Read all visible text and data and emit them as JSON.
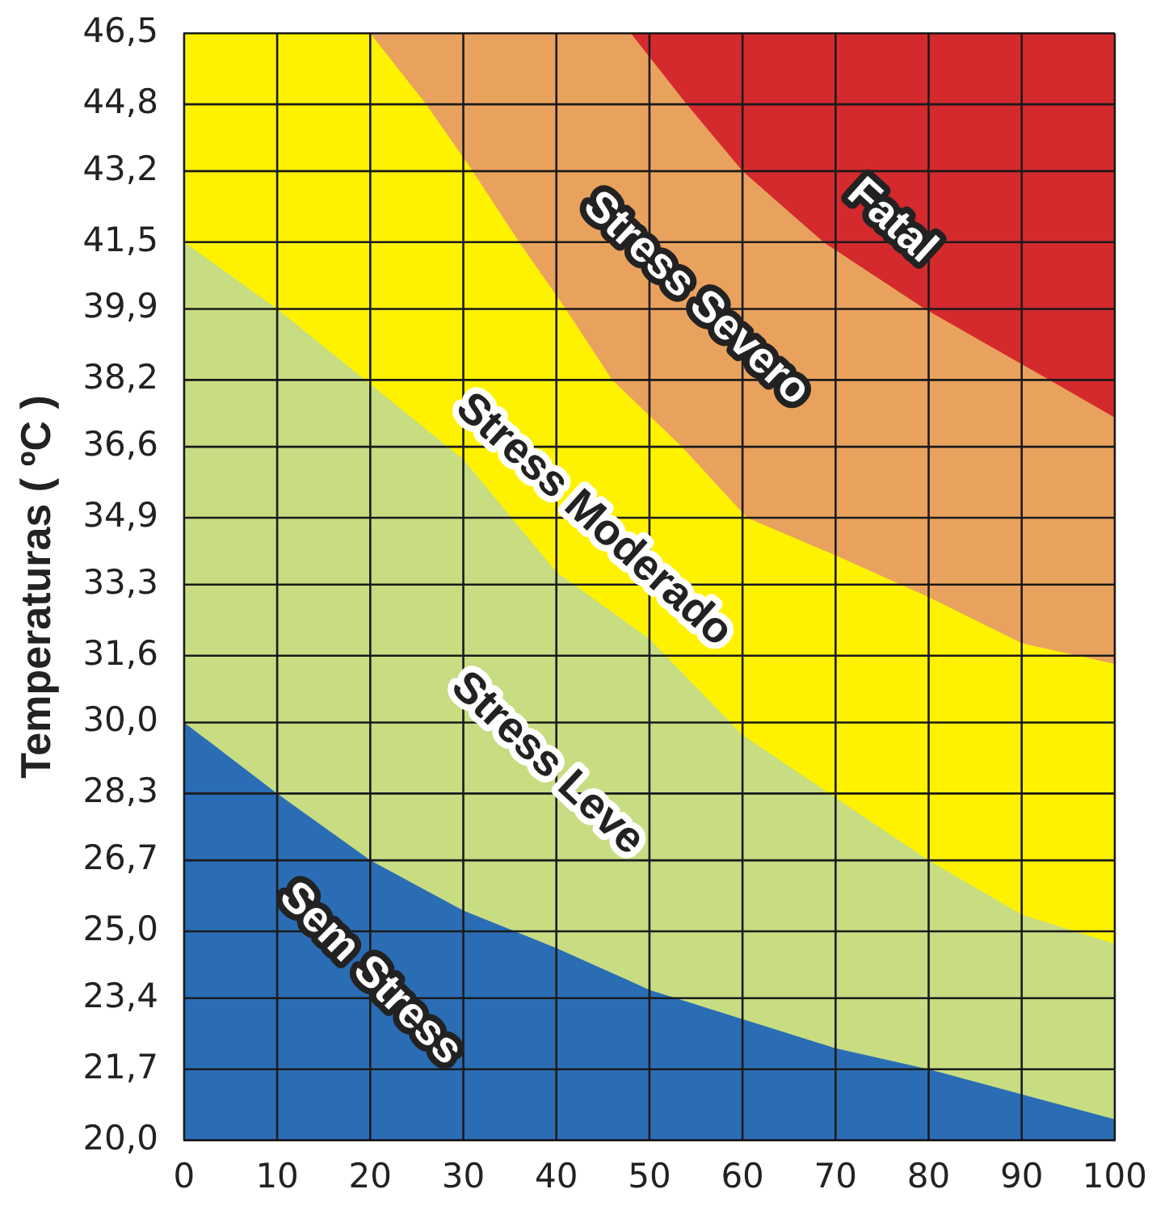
{
  "chart_data": {
    "type": "area",
    "ylabel": "Temperaturas ( ºC )",
    "xlim": [
      0,
      100
    ],
    "xticks": [
      0,
      10,
      20,
      30,
      40,
      50,
      60,
      70,
      80,
      90,
      100
    ],
    "ylim": [
      20.0,
      46.5
    ],
    "yticks": [
      {
        "value": 20.0,
        "label": "20,0"
      },
      {
        "value": 21.7,
        "label": "21,7"
      },
      {
        "value": 23.4,
        "label": "23,4"
      },
      {
        "value": 25.0,
        "label": "25,0"
      },
      {
        "value": 26.7,
        "label": "26,7"
      },
      {
        "value": 28.3,
        "label": "28,3"
      },
      {
        "value": 30.0,
        "label": "30,0"
      },
      {
        "value": 31.6,
        "label": "31,6"
      },
      {
        "value": 33.3,
        "label": "33,3"
      },
      {
        "value": 34.9,
        "label": "34,9"
      },
      {
        "value": 36.6,
        "label": "36,6"
      },
      {
        "value": 38.2,
        "label": "38,2"
      },
      {
        "value": 39.9,
        "label": "39,9"
      },
      {
        "value": 41.5,
        "label": "41,5"
      },
      {
        "value": 43.2,
        "label": "43,2"
      },
      {
        "value": 44.8,
        "label": "44,8"
      },
      {
        "value": 46.5,
        "label": "46,5"
      }
    ],
    "grid": true,
    "legend": false,
    "series": [
      {
        "name": "Fatal",
        "color": "#d42a2e",
        "x": [
          48,
          100
        ],
        "values": [
          46.5,
          46.5
        ]
      },
      {
        "name": "Stress Severo",
        "color": "#e9a25e",
        "x": [
          20,
          48,
          54,
          60,
          68.7,
          79.6,
          93,
          100
        ],
        "values": [
          46.5,
          46.5,
          44.8,
          43.2,
          41.5,
          39.9,
          38.2,
          37.3
        ]
      },
      {
        "name": "Stress Moderado",
        "color": "#fff200",
        "x": [
          0,
          20,
          26,
          31,
          36,
          41,
          46,
          53.5,
          60.5,
          70,
          80,
          90,
          100
        ],
        "values": [
          46.5,
          46.5,
          44.8,
          43.2,
          41.5,
          39.9,
          38.2,
          36.6,
          34.9,
          34.0,
          33.0,
          31.9,
          31.4
        ]
      },
      {
        "name": "Stress Leve",
        "color": "#c8dc82",
        "x": [
          0,
          10,
          20,
          30,
          40,
          50,
          60,
          70,
          80,
          90,
          100
        ],
        "values": [
          41.5,
          39.9,
          38.1,
          36.3,
          33.6,
          32.0,
          29.7,
          28.2,
          26.7,
          25.4,
          24.7
        ]
      },
      {
        "name": "Sem Stress",
        "color": "#2a6db5",
        "x": [
          0,
          10,
          20,
          30,
          40,
          50,
          60,
          70,
          80,
          90,
          100
        ],
        "values": [
          30.0,
          28.3,
          26.7,
          25.5,
          24.6,
          23.6,
          22.9,
          22.2,
          21.7,
          21.1,
          20.5
        ]
      }
    ]
  }
}
